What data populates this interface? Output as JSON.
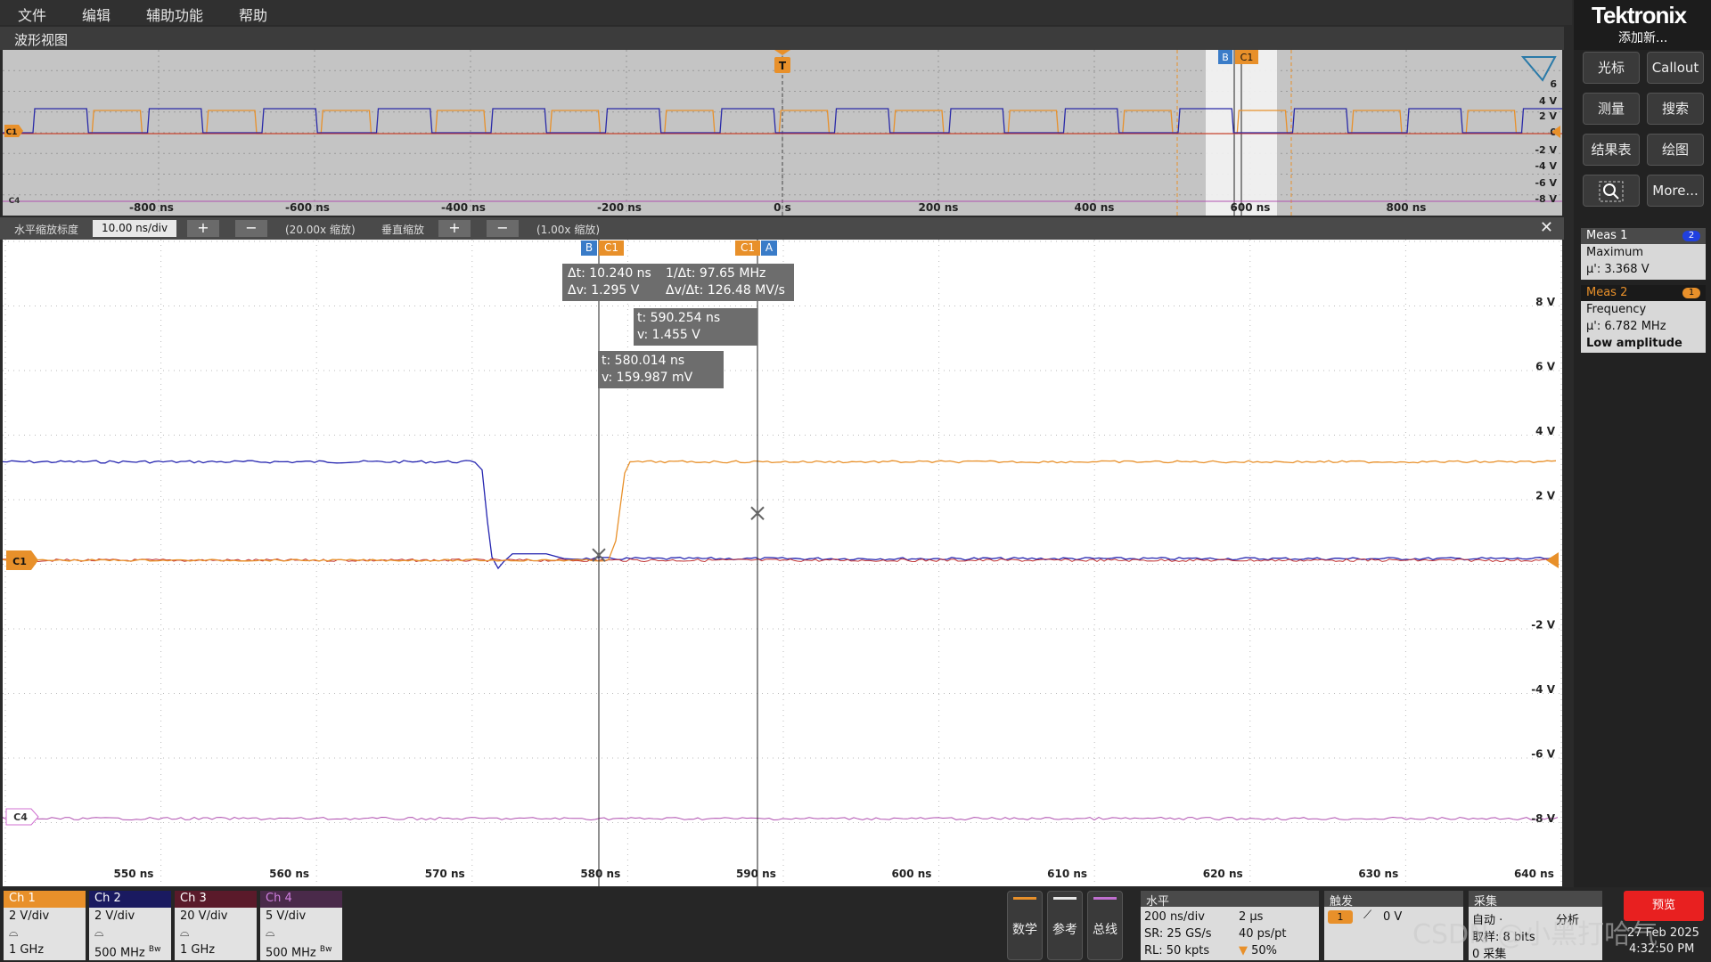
{
  "menu": [
    "文件",
    "编辑",
    "辅助功能",
    "帮助"
  ],
  "brand": {
    "logo": "Tektronix",
    "add_new": "添加新..."
  },
  "overview": {
    "title": "波形视图",
    "time_labels": [
      "-800 ns",
      "-600 ns",
      "-400 ns",
      "-200 ns",
      "0 s",
      "200 ns",
      "400 ns",
      "600 ns",
      "800 ns"
    ],
    "volt_labels": [
      "6",
      "4 V",
      "2 V",
      "0",
      "-2 V",
      "-4 V",
      "-6 V",
      "-8 V"
    ],
    "trigger_tag": "T",
    "cursor_tags": [
      "B",
      "C1"
    ],
    "ch_tags": [
      "C1",
      "C4"
    ]
  },
  "zoombar": {
    "h_label": "水平缩放标度",
    "h_value": "10.00 ns/div",
    "plus": "+",
    "minus": "−",
    "h_factor": "(20.00x 缩放)",
    "v_label": "垂直缩放",
    "v_factor": "(1.00x 缩放)",
    "close": "✕"
  },
  "main": {
    "time_labels": [
      "550 ns",
      "560 ns",
      "570 ns",
      "580 ns",
      "590 ns",
      "600 ns",
      "610 ns",
      "620 ns",
      "630 ns",
      "640 ns"
    ],
    "volt_labels": [
      "8 V",
      "6 V",
      "4 V",
      "2 V",
      "-2 V",
      "-4 V",
      "-6 V",
      "-8 V"
    ],
    "cursor_tag_left": [
      "B",
      "C1"
    ],
    "cursor_tag_right": [
      "C1",
      "A"
    ],
    "delta_box": {
      "dt": "Δt: 10.240 ns",
      "inv_dt": "1/Δt: 97.65 MHz",
      "dv": "Δv: 1.295 V",
      "dvdt": "Δv/Δt: 126.48 MV/s"
    },
    "cursor_a": {
      "t": "t: 590.254 ns",
      "v": "v: 1.455 V"
    },
    "cursor_b": {
      "t": "t: 580.014 ns",
      "v": "v: 159.987 mV"
    },
    "ch1_tag": "C1",
    "ch4_tag": "C4"
  },
  "right_panel": {
    "buttons": [
      "光标",
      "Callout",
      "测量",
      "搜索",
      "结果表",
      "绘图",
      "More..."
    ],
    "meas1": {
      "title": "Meas 1",
      "badge": "2",
      "type": "Maximum",
      "value": "μ': 3.368 V"
    },
    "meas2": {
      "title": "Meas 2",
      "badge": "1",
      "type": "Frequency",
      "value": "μ': 6.782 MHz",
      "note": "Low amplitude"
    }
  },
  "channels": [
    {
      "name": "Ch 1",
      "vdiv": "2 V/div",
      "bw": "1 GHz",
      "bw_mark": "",
      "color": "#e8902a"
    },
    {
      "name": "Ch 2",
      "vdiv": "2 V/div",
      "bw": "500 MHz",
      "bw_mark": "Bw",
      "color": "#2a2a8a"
    },
    {
      "name": "Ch 3",
      "vdiv": "20 V/div",
      "bw": "1 GHz",
      "bw_mark": "",
      "color": "#8a2a3a"
    },
    {
      "name": "Ch 4",
      "vdiv": "5 V/div",
      "bw": "500 MHz",
      "bw_mark": "Bw",
      "color": "#7a3a7a"
    }
  ],
  "side_buttons": [
    {
      "label": "数学",
      "color": "#e8902a"
    },
    {
      "label": "参考",
      "color": "#e8e8e8"
    },
    {
      "label": "总线",
      "color": "#c070d0"
    }
  ],
  "horizontal": {
    "title": "水平",
    "scale": "200 ns/div",
    "record": "2 μs",
    "sr": "SR: 25 GS/s",
    "pt": "40 ps/pt",
    "rl": "RL: 50 kpts",
    "pos": "50%"
  },
  "trigger": {
    "title": "触发",
    "source": "1",
    "level": "0 V"
  },
  "acquire": {
    "title": "采集",
    "mode": "自动 ·",
    "analyze": "分析",
    "sample": "取样: 8 bits",
    "count": "0 采集"
  },
  "preview": {
    "label": "预览",
    "date": "27 Feb 2025",
    "time": "4:32:50 PM"
  },
  "watermark": "CSDN @小黑打哈气",
  "colors": {
    "ch1": "#e8902a",
    "ch2": "#2a2aa8",
    "ch3": "#c03030",
    "ch4": "#b050b0"
  }
}
